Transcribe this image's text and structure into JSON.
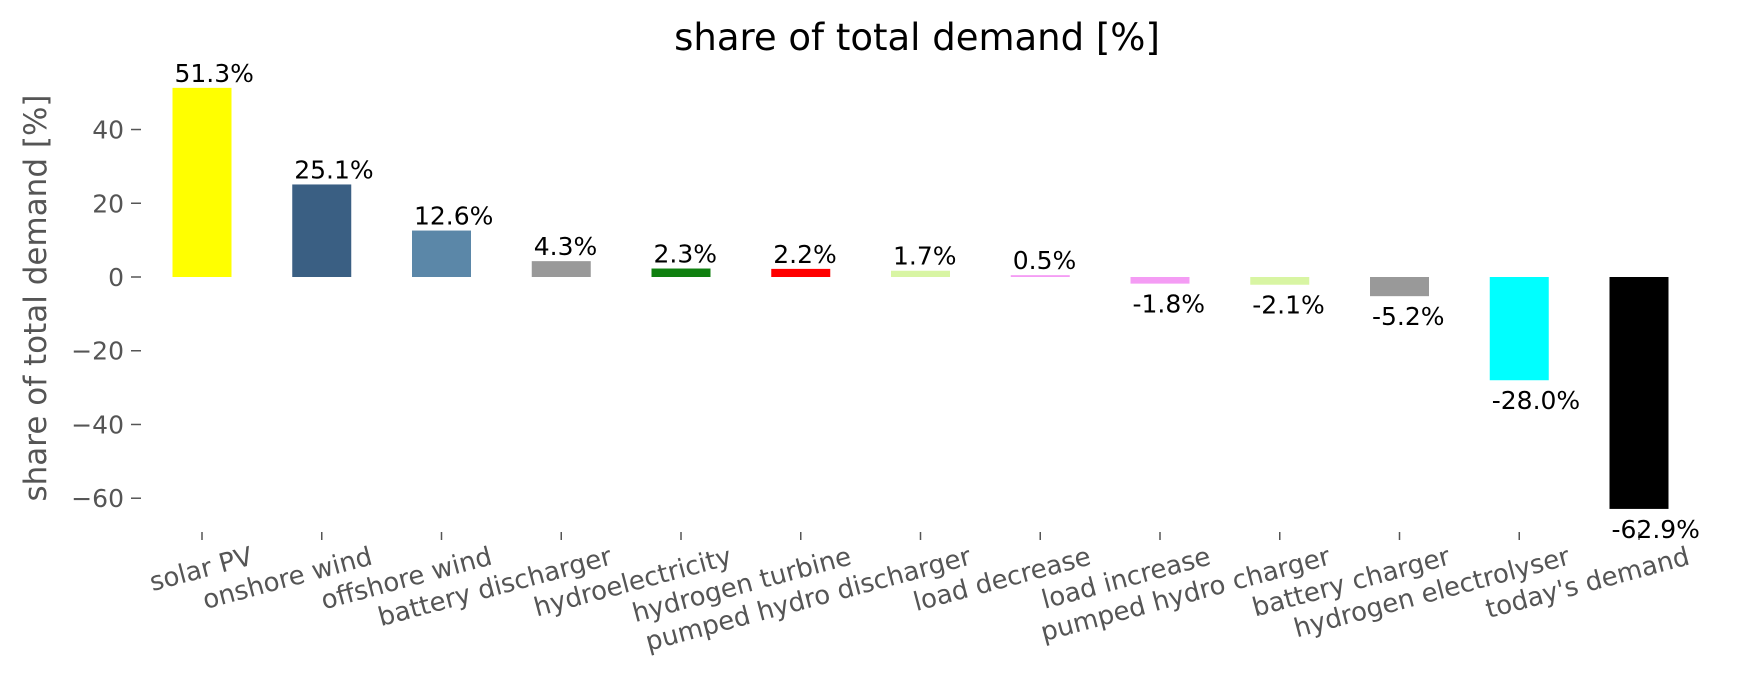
{
  "chart_data": {
    "type": "bar",
    "title": "share of total demand [%]",
    "xlabel": "",
    "ylabel": "share of total demand [%]",
    "ylim": [
      -70,
      54
    ],
    "yticks": [
      -60,
      -40,
      -20,
      0,
      20,
      40
    ],
    "ytick_labels": [
      "−60",
      "−40",
      "−20",
      "0",
      "20",
      "40"
    ],
    "grid": false,
    "legend": "none",
    "categories": [
      "solar PV",
      "onshore wind",
      "offshore wind",
      "battery discharger",
      "hydroelectricity",
      "hydrogen turbine",
      "pumped hydro discharger",
      "load decrease",
      "load increase",
      "pumped hydro charger",
      "battery charger",
      "hydrogen electrolyser",
      "today's demand"
    ],
    "values": [
      51.3,
      25.1,
      12.6,
      4.3,
      2.3,
      2.2,
      1.7,
      0.5,
      -1.8,
      -2.1,
      -5.2,
      -28.0,
      -62.9
    ],
    "value_labels": [
      "51.3%",
      "25.1%",
      "12.6%",
      "4.3%",
      "2.3%",
      "2.2%",
      "1.7%",
      "0.5%",
      "-1.8%",
      "-2.1%",
      "-5.2%",
      "-28.0%",
      "-62.9%"
    ],
    "colors": [
      "#ffff00",
      "#3a5f83",
      "#5b87a8",
      "#999999",
      "#108010",
      "#ff0000",
      "#d8f5a3",
      "#f49cf4",
      "#f49cf4",
      "#d8f5a3",
      "#999999",
      "#00ffff",
      "#000000"
    ]
  }
}
